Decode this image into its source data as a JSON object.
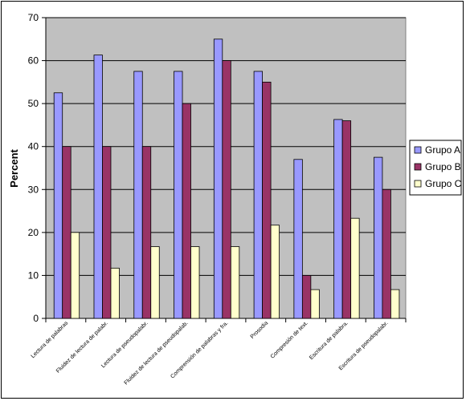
{
  "chart_data": {
    "type": "bar",
    "title": "",
    "xlabel": "",
    "ylabel": "Percent",
    "ylim": [
      0,
      70
    ],
    "yticks": [
      0,
      10,
      20,
      30,
      40,
      50,
      60,
      70
    ],
    "grid": true,
    "legend_position": "right",
    "categories": [
      "Lectura de palabras",
      "Fluidez de lectura de palabr.",
      "Lectura de pseudopalabr.",
      "Fluidez de lectura de pseudopalab.",
      "Comprensión de palabras y fra.",
      "Prosodia",
      "Compresión de text.",
      "Escritura de palabra.",
      "Escritura de pseudopalabr."
    ],
    "series": [
      {
        "name": "Grupo A",
        "color": "#9999ff",
        "values": [
          52.5,
          61.3,
          57.5,
          57.5,
          65,
          57.5,
          37,
          46.3,
          37.5
        ]
      },
      {
        "name": "Grupo B",
        "color": "#993366",
        "values": [
          40,
          40,
          40,
          50,
          60,
          55,
          10,
          46,
          30
        ]
      },
      {
        "name": "Grupo C",
        "color": "#ffffcc",
        "values": [
          20,
          11.7,
          16.7,
          16.7,
          16.7,
          21.7,
          6.7,
          23.3,
          6.7
        ]
      }
    ],
    "plot_background": "#c0c0c0"
  }
}
